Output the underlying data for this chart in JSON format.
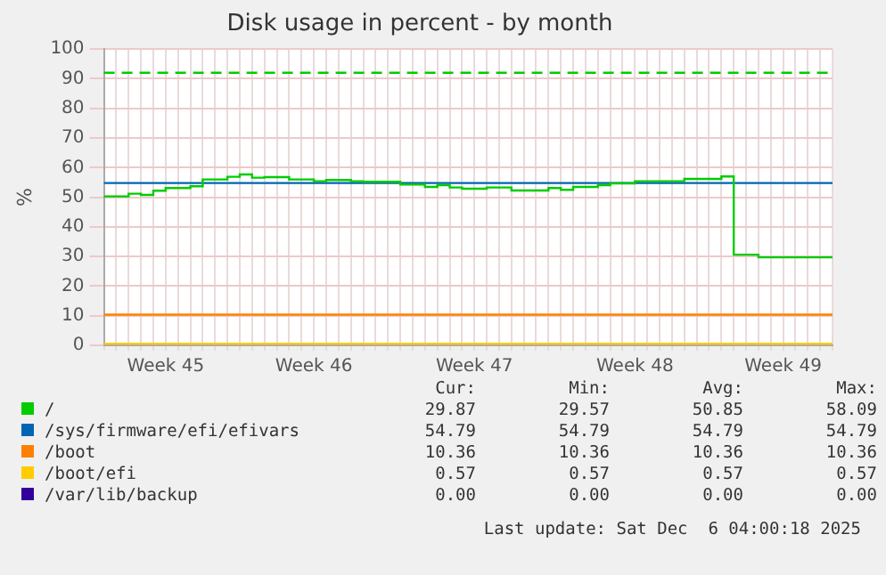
{
  "chart_data": {
    "type": "step",
    "title": "Disk usage in percent - by month",
    "ylabel": "%",
    "categories": [
      null,
      null,
      null,
      null,
      null,
      "Week 45",
      null,
      null,
      null,
      null,
      null,
      null,
      null,
      null,
      null,
      null,
      null,
      "Week 46",
      null,
      null,
      null,
      null,
      null,
      null,
      null,
      null,
      null,
      null,
      null,
      null,
      "Week 47",
      null,
      null,
      null,
      null,
      null,
      null,
      null,
      null,
      null,
      null,
      null,
      null,
      "Week 48",
      null,
      null,
      null,
      null,
      null,
      null,
      null,
      null,
      null,
      null,
      null,
      "Week 49",
      null,
      null,
      null,
      null
    ],
    "series": [
      {
        "name": "/",
        "color": "#00cc00",
        "values": [
          50.3,
          50.3,
          51.2,
          50.8,
          52.2,
          53.1,
          53.1,
          53.7,
          56.0,
          56.0,
          56.9,
          57.7,
          56.6,
          56.8,
          56.8,
          56.0,
          56.0,
          55.4,
          55.8,
          55.8,
          55.4,
          55.2,
          55.2,
          55.2,
          54.3,
          54.3,
          53.5,
          54.1,
          53.3,
          52.9,
          52.9,
          53.3,
          53.3,
          52.3,
          52.3,
          52.3,
          53.1,
          52.5,
          53.5,
          53.5,
          54.1,
          54.7,
          54.7,
          55.4,
          55.4,
          55.4,
          55.4,
          56.2,
          56.2,
          56.2,
          57.0,
          30.6,
          30.6,
          29.7,
          29.7,
          29.7,
          29.7,
          29.7,
          29.7,
          29.7
        ]
      },
      {
        "name": "/sys/firmware/efi/efivars",
        "color": "#0066b3",
        "values": [
          54.79,
          54.79,
          54.79,
          54.79,
          54.79,
          54.79,
          54.79,
          54.79,
          54.79,
          54.79,
          54.79,
          54.79,
          54.79,
          54.79,
          54.79,
          54.79,
          54.79,
          54.79,
          54.79,
          54.79,
          54.79,
          54.79,
          54.79,
          54.79,
          54.79,
          54.79,
          54.79,
          54.79,
          54.79,
          54.79,
          54.79,
          54.79,
          54.79,
          54.79,
          54.79,
          54.79,
          54.79,
          54.79,
          54.79,
          54.79,
          54.79,
          54.79,
          54.79,
          54.79,
          54.79,
          54.79,
          54.79,
          54.79,
          54.79,
          54.79,
          54.79,
          54.79,
          54.79,
          54.79,
          54.79,
          54.79,
          54.79,
          54.79,
          54.79,
          54.79
        ]
      },
      {
        "name": "/boot",
        "color": "#ff8000",
        "values": [
          10.36,
          10.36,
          10.36,
          10.36,
          10.36,
          10.36,
          10.36,
          10.36,
          10.36,
          10.36,
          10.36,
          10.36,
          10.36,
          10.36,
          10.36,
          10.36,
          10.36,
          10.36,
          10.36,
          10.36,
          10.36,
          10.36,
          10.36,
          10.36,
          10.36,
          10.36,
          10.36,
          10.36,
          10.36,
          10.36,
          10.36,
          10.36,
          10.36,
          10.36,
          10.36,
          10.36,
          10.36,
          10.36,
          10.36,
          10.36,
          10.36,
          10.36,
          10.36,
          10.36,
          10.36,
          10.36,
          10.36,
          10.36,
          10.36,
          10.36,
          10.36,
          10.36,
          10.36,
          10.36,
          10.36,
          10.36,
          10.36,
          10.36,
          10.36,
          10.36
        ]
      },
      {
        "name": "/boot/efi",
        "color": "#ffcc00",
        "values": [
          0.57,
          0.57,
          0.57,
          0.57,
          0.57,
          0.57,
          0.57,
          0.57,
          0.57,
          0.57,
          0.57,
          0.57,
          0.57,
          0.57,
          0.57,
          0.57,
          0.57,
          0.57,
          0.57,
          0.57,
          0.57,
          0.57,
          0.57,
          0.57,
          0.57,
          0.57,
          0.57,
          0.57,
          0.57,
          0.57,
          0.57,
          0.57,
          0.57,
          0.57,
          0.57,
          0.57,
          0.57,
          0.57,
          0.57,
          0.57,
          0.57,
          0.57,
          0.57,
          0.57,
          0.57,
          0.57,
          0.57,
          0.57,
          0.57,
          0.57,
          0.57,
          0.57,
          0.57,
          0.57,
          0.57,
          0.57,
          0.57,
          0.57,
          0.57,
          0.57
        ]
      },
      {
        "name": "/var/lib/backup",
        "color": "#330099",
        "values": [
          null,
          null,
          null,
          null,
          null,
          null,
          null,
          null,
          null,
          null,
          null,
          null,
          null,
          null,
          null,
          null,
          null,
          null,
          null,
          null,
          null,
          null,
          null,
          null,
          null,
          null,
          null,
          null,
          null,
          null,
          null,
          null,
          null,
          null,
          null,
          null,
          null,
          null,
          null,
          null,
          null,
          null,
          null,
          null,
          null,
          null,
          null,
          null,
          null,
          null,
          null,
          null,
          null,
          null,
          null,
          null,
          null,
          null,
          null,
          null
        ]
      }
    ],
    "ylim": [
      0,
      100
    ],
    "yticks": [
      0,
      10,
      20,
      30,
      40,
      50,
      60,
      70,
      80,
      90,
      100
    ],
    "grid": true,
    "legend": "bottom",
    "ref_lines": [
      {
        "axis": "y",
        "value": 92,
        "color": "#00cc00",
        "line_style": "dashed"
      }
    ],
    "annotations": [
      "Cur:",
      "Min:",
      "Avg:",
      "Max:",
      "29.87",
      "29.57",
      "50.85",
      "58.09",
      "54.79",
      "54.79",
      "54.79",
      "54.79",
      "10.36",
      "10.36",
      "10.36",
      "10.36",
      "0.57",
      "0.57",
      "0.57",
      "0.57",
      "0.00",
      "0.00",
      "0.00",
      "0.00",
      "Last update: Sat Dec  6 04:00:18 2025"
    ]
  }
}
